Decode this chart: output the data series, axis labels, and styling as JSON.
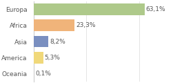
{
  "categories": [
    "Europa",
    "Africa",
    "Asia",
    "America",
    "Oceania"
  ],
  "values": [
    63.1,
    23.3,
    8.2,
    5.3,
    0.1
  ],
  "labels": [
    "63,1%",
    "23,3%",
    "8,2%",
    "5,3%",
    "0,1%"
  ],
  "bar_colors": [
    "#aec98a",
    "#f0b47a",
    "#7a8fc0",
    "#f0d87a",
    "#f4a09a"
  ],
  "background_color": "#ffffff",
  "label_fontsize": 6.5,
  "tick_fontsize": 6.5,
  "xlim": [
    0,
    90
  ],
  "bar_height": 0.72,
  "text_color": "#555555",
  "spine_color": "#cccccc",
  "grid_color": "#e0e0e0"
}
